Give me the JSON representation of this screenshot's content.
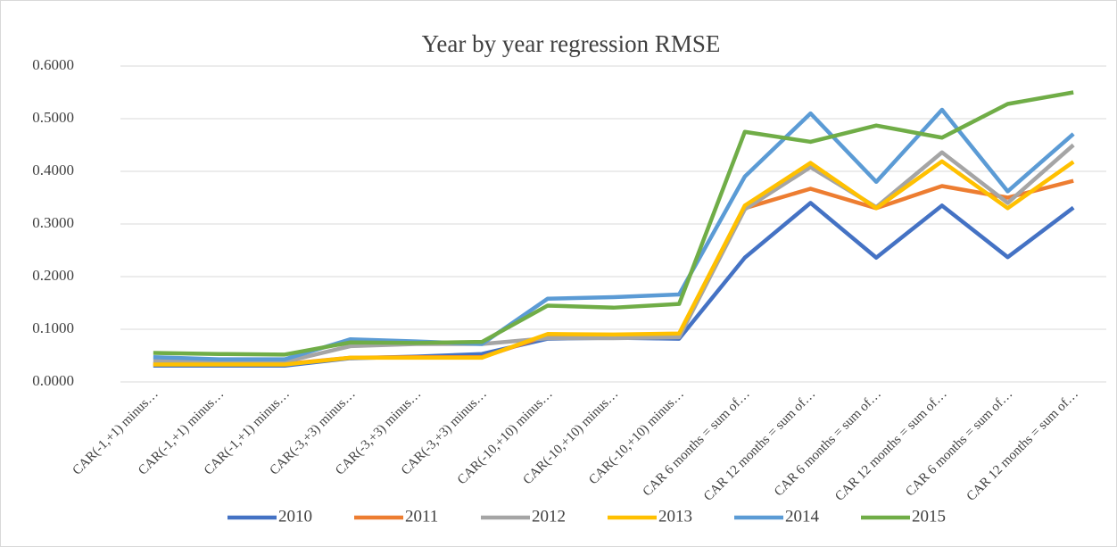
{
  "chart_data": {
    "type": "line",
    "title": "Year by year regression RMSE",
    "categories": [
      "CAR(-1,+1) minus…",
      "CAR(-1,+1) minus…",
      "CAR(-1,+1) minus…",
      "CAR(-3,+3) minus…",
      "CAR(-3,+3) minus…",
      "CAR(-3,+3) minus…",
      "CAR(-10,+10) minus…",
      "CAR(-10,+10) minus…",
      "CAR(-10,+10) minus…",
      "CAR 6 months = sum of…",
      "CAR 12 months = sum of…",
      "CAR 6 months = sum of…",
      "CAR 12 months = sum of…",
      "CAR 6 months = sum of…",
      "CAR 12 months = sum of…"
    ],
    "series": [
      {
        "name": "2010",
        "color": "#4472c4",
        "values": [
          0.031,
          0.031,
          0.031,
          0.045,
          0.048,
          0.053,
          0.082,
          0.084,
          0.082,
          0.236,
          0.34,
          0.236,
          0.335,
          0.237,
          0.331
        ]
      },
      {
        "name": "2011",
        "color": "#ed7d31",
        "values": [
          0.034,
          0.034,
          0.034,
          0.046,
          0.047,
          0.047,
          0.088,
          0.088,
          0.09,
          0.33,
          0.367,
          0.33,
          0.372,
          0.35,
          0.382
        ]
      },
      {
        "name": "2012",
        "color": "#a5a5a5",
        "values": [
          0.04,
          0.038,
          0.038,
          0.068,
          0.072,
          0.072,
          0.083,
          0.083,
          0.085,
          0.328,
          0.408,
          0.332,
          0.436,
          0.34,
          0.45
        ]
      },
      {
        "name": "2013",
        "color": "#ffc000",
        "values": [
          0.033,
          0.033,
          0.033,
          0.046,
          0.046,
          0.046,
          0.091,
          0.09,
          0.092,
          0.335,
          0.416,
          0.33,
          0.419,
          0.33,
          0.418
        ]
      },
      {
        "name": "2014",
        "color": "#5b9bd5",
        "values": [
          0.047,
          0.043,
          0.043,
          0.081,
          0.077,
          0.072,
          0.158,
          0.161,
          0.166,
          0.39,
          0.51,
          0.38,
          0.517,
          0.362,
          0.471
        ]
      },
      {
        "name": "2015",
        "color": "#70ad47",
        "values": [
          0.055,
          0.053,
          0.052,
          0.075,
          0.074,
          0.076,
          0.145,
          0.141,
          0.148,
          0.475,
          0.456,
          0.487,
          0.464,
          0.528,
          0.55
        ]
      }
    ],
    "ylim": [
      0,
      0.6
    ],
    "yticks": [
      {
        "value": 0,
        "label": "0.0000"
      },
      {
        "value": 0.1,
        "label": "0.1000"
      },
      {
        "value": 0.2,
        "label": "0.2000"
      },
      {
        "value": 0.3,
        "label": "0.3000"
      },
      {
        "value": 0.4,
        "label": "0.4000"
      },
      {
        "value": 0.5,
        "label": "0.5000"
      },
      {
        "value": 0.6,
        "label": "0.6000"
      }
    ],
    "grid": true,
    "legend": "bottom"
  }
}
